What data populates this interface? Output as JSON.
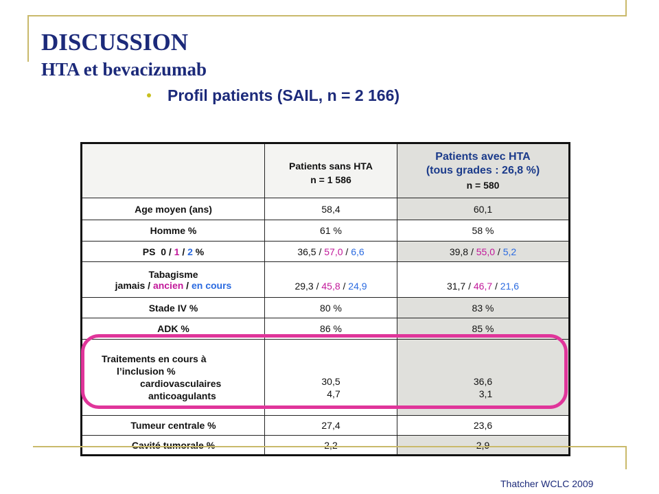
{
  "title": "DISCUSSION",
  "subtitle": "HTA et bevacizumab",
  "bullet": "Profil patients (SAIL, n = 2 166)",
  "header": {
    "col2_line1": "Patients sans HTA",
    "col2_line2": "n = 1 586",
    "col3_line1": "Patients avec HTA",
    "col3_line2": "(tous grades : 26,8 %)",
    "col3_line3": "n = 580"
  },
  "rows": {
    "age": {
      "label": "Age moyen (ans)",
      "sans": "58,4",
      "avec": "60,1"
    },
    "homme": {
      "label": "Homme %",
      "sans": "61 %",
      "avec": "58 %"
    },
    "ps": {
      "label_prefix": "PS  0 / ",
      "label_1": "1",
      "label_sep": " / ",
      "label_2": "2",
      "label_suffix": " %",
      "sans": {
        "v0": "36,5",
        "v1": "57,0",
        "v2": "6,6"
      },
      "avec": {
        "v0": "39,8",
        "v1": "55,0",
        "v2": "5,2"
      },
      "sep": " / "
    },
    "tabac": {
      "label_title": "Tabagisme",
      "label_jamais": "jamais",
      "label_ancien": "ancien",
      "label_encours": "en cours",
      "sep": " / ",
      "sans": {
        "v0": "29,3",
        "v1": "45,8",
        "v2": "24,9"
      },
      "avec": {
        "v0": "31,7",
        "v1": "46,7",
        "v2": "21,6"
      }
    },
    "stade": {
      "label": "Stade IV %",
      "sans": "80 %",
      "avec": "83 %"
    },
    "adk": {
      "label": "ADK %",
      "sans": "86 %",
      "avec": "85 %"
    },
    "traitements": {
      "label_line1": "Traitements en cours à",
      "label_line2": "l’inclusion %",
      "label_line3": "cardiovasculaires",
      "label_line4": "anticoagulants",
      "sans_cv": "30,5",
      "sans_ac": "4,7",
      "avec_cv": "36,6",
      "avec_ac": "3,1"
    },
    "tumeur": {
      "label": "Tumeur centrale %",
      "sans": "27,4",
      "avec": "23,6"
    },
    "cavite": {
      "label": "Cavité tumorale %",
      "sans": "2,2",
      "avec": "2,9"
    }
  },
  "source": "Thatcher WCLC 2009",
  "colors": {
    "title": "#1c2a7a",
    "accent_gold": "#c9b96a",
    "magenta": "#c2189a",
    "blue": "#2a6ae0",
    "highlight": "#e0359a"
  }
}
